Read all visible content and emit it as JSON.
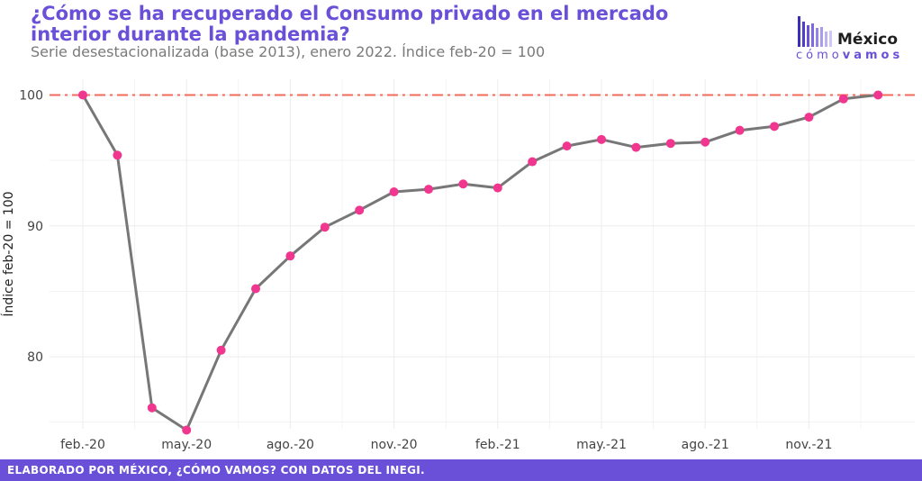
{
  "header": {
    "title": "¿Cómo se ha recuperado el Consumo privado en el mercado interior durante la pandemia?",
    "subtitle": "Serie desestacionalizada (base 2013), enero 2022. Índice feb-20 = 100"
  },
  "logo": {
    "main": "México",
    "sub_light": "cómo",
    "sub_bold": "vamos"
  },
  "footer": {
    "text": "ELABORADO POR MÉXICO, ¿CÓMO VAMOS? CON DATOS DEL INEGI."
  },
  "colors": {
    "accent": "#6a4fd8",
    "line": "#777777",
    "point": "#f0368f",
    "reference": "#f26b5b",
    "grid": "#ececec"
  },
  "chart_data": {
    "type": "line",
    "ylabel": "Índice feb-20 = 100",
    "xlabel": "",
    "ylim": [
      74.5,
      101.2
    ],
    "yticks": [
      80,
      90,
      100
    ],
    "x_ticks": [
      {
        "index": 0,
        "label": "feb.-20"
      },
      {
        "index": 3,
        "label": "may.-20"
      },
      {
        "index": 6,
        "label": "ago.-20"
      },
      {
        "index": 9,
        "label": "nov.-20"
      },
      {
        "index": 12,
        "label": "feb.-21"
      },
      {
        "index": 15,
        "label": "may.-21"
      },
      {
        "index": 18,
        "label": "ago.-21"
      },
      {
        "index": 21,
        "label": "nov.-21"
      }
    ],
    "reference_line": 100,
    "grid": true,
    "values": [
      100,
      95.4,
      76.1,
      74.4,
      80.5,
      85.2,
      87.7,
      89.9,
      91.2,
      92.6,
      92.8,
      93.2,
      92.9,
      94.9,
      96.1,
      96.6,
      96.0,
      96.3,
      96.4,
      97.3,
      97.6,
      98.3,
      99.7,
      100.0
    ]
  }
}
